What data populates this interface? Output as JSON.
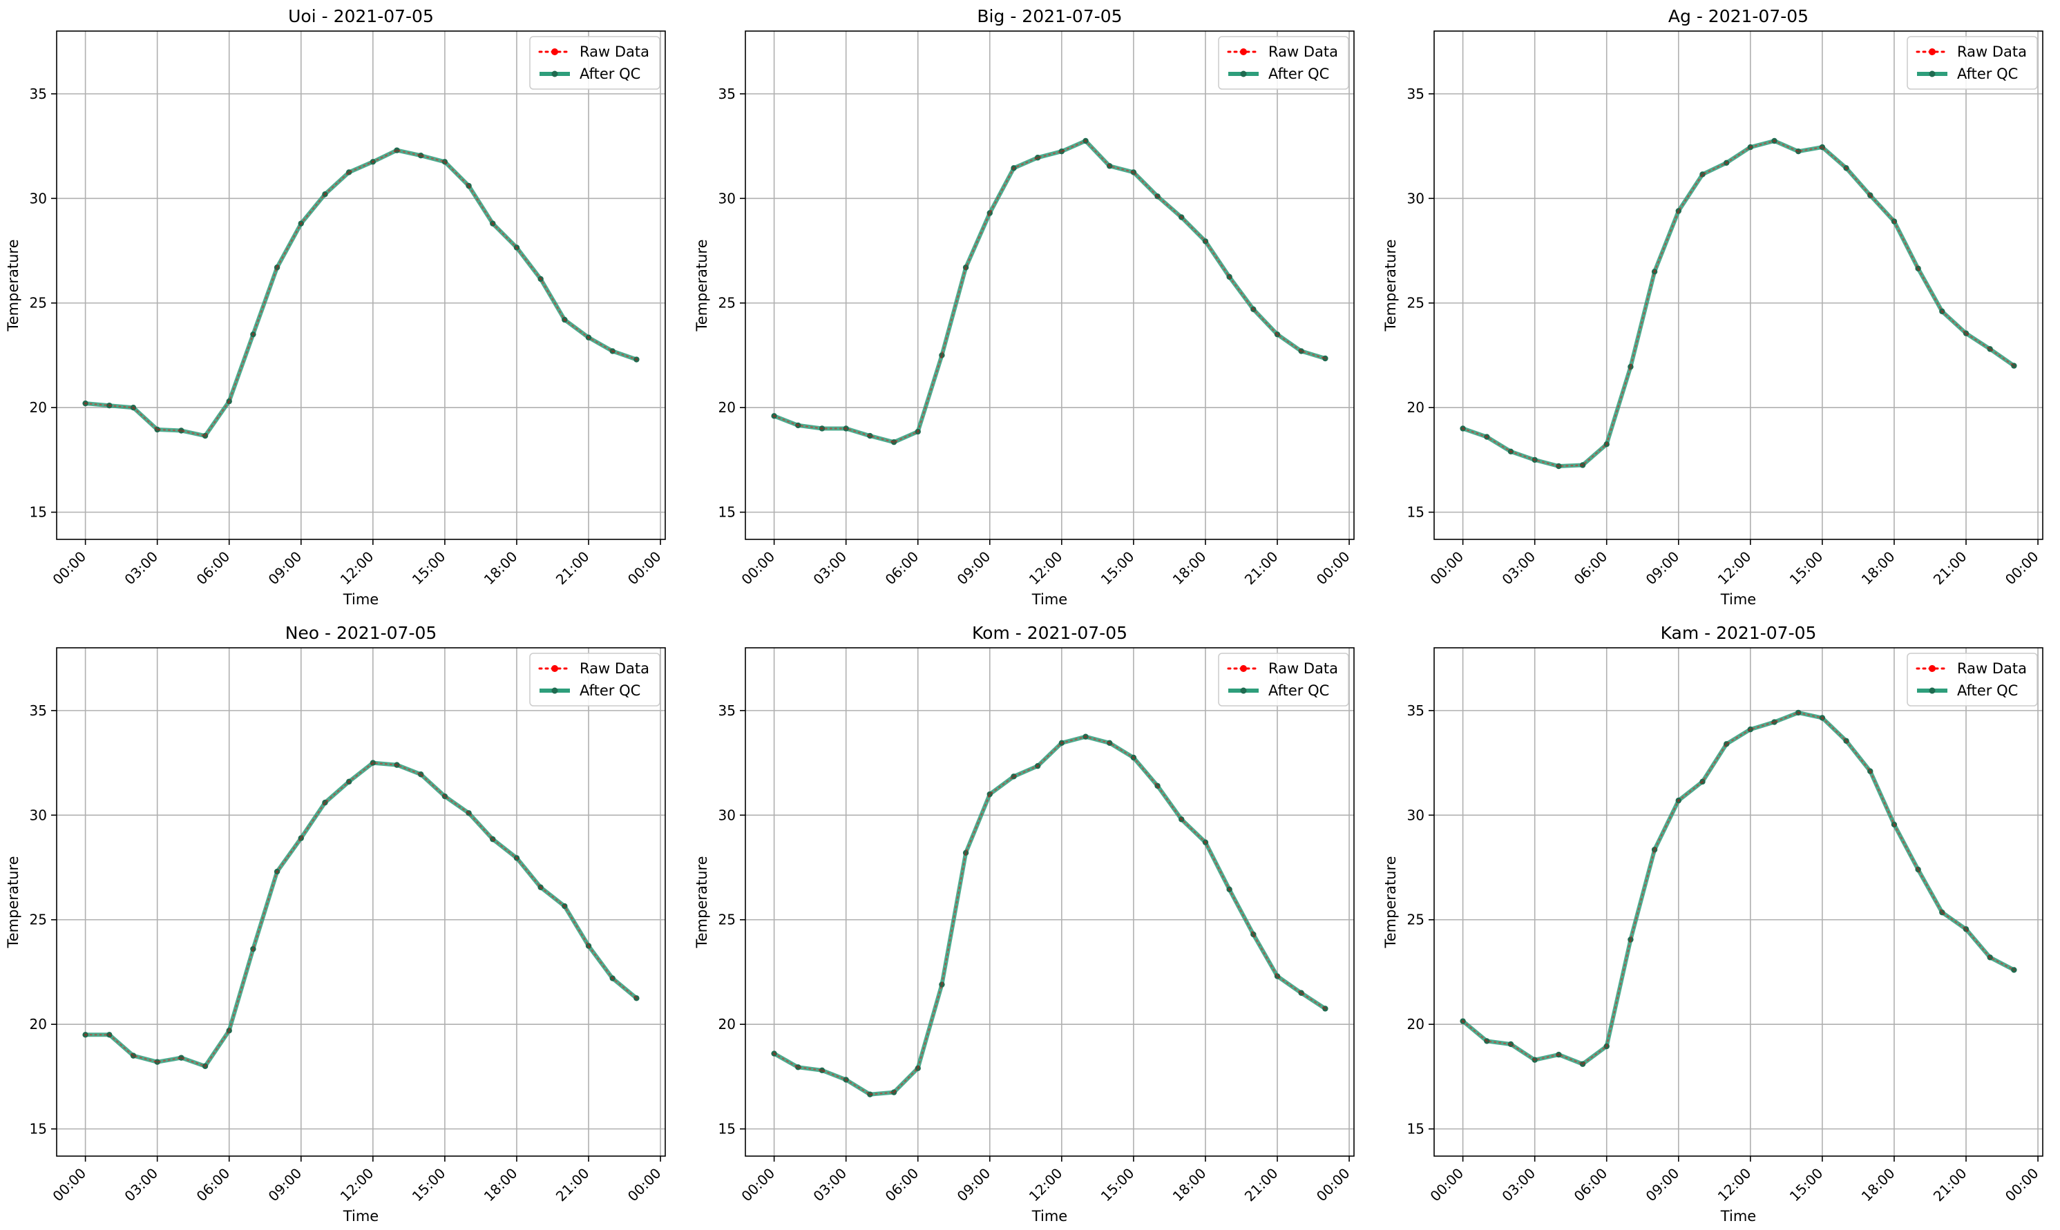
{
  "colors": {
    "raw": "#ff0000",
    "qc": "#2e9e7b",
    "qc_marker": "#1f6b50",
    "grid": "#b0b0b0",
    "axes": "#000000"
  },
  "legend": {
    "placement": "top-right",
    "raw_label": "Raw Data",
    "qc_label": "After QC"
  },
  "chart_data": [
    {
      "type": "line",
      "title": "Uoi - 2021-07-05",
      "xlabel": "Time",
      "ylabel": "Temperature",
      "x": [
        "00:00",
        "01:00",
        "02:00",
        "03:00",
        "04:00",
        "05:00",
        "06:00",
        "07:00",
        "08:00",
        "09:00",
        "10:00",
        "11:00",
        "12:00",
        "13:00",
        "14:00",
        "15:00",
        "16:00",
        "17:00",
        "18:00",
        "19:00",
        "20:00",
        "21:00",
        "22:00",
        "23:00"
      ],
      "xticks": [
        "00:00",
        "03:00",
        "06:00",
        "09:00",
        "12:00",
        "15:00",
        "18:00",
        "21:00",
        "00:00"
      ],
      "yticks": [
        15,
        20,
        25,
        30,
        35
      ],
      "ylim": [
        13.7,
        38
      ],
      "xlim_hours": [
        -1.2,
        24.2
      ],
      "grid": true,
      "series": [
        {
          "name": "Raw Data",
          "values": [
            20.2,
            20.1,
            20.0,
            18.95,
            18.9,
            18.65,
            20.3,
            23.5,
            26.7,
            28.8,
            30.2,
            31.25,
            31.75,
            32.3,
            32.05,
            31.75,
            30.6,
            28.8,
            27.65,
            26.15,
            24.2,
            23.35,
            22.7,
            22.3
          ]
        },
        {
          "name": "After QC",
          "values": [
            20.2,
            20.1,
            20.0,
            18.95,
            18.9,
            18.65,
            20.3,
            23.5,
            26.7,
            28.8,
            30.2,
            31.25,
            31.75,
            32.3,
            32.05,
            31.75,
            30.6,
            28.8,
            27.65,
            26.15,
            24.2,
            23.35,
            22.7,
            22.3
          ]
        }
      ]
    },
    {
      "type": "line",
      "title": "Big - 2021-07-05",
      "xlabel": "Time",
      "ylabel": "Temperature",
      "x": [
        "00:00",
        "01:00",
        "02:00",
        "03:00",
        "04:00",
        "05:00",
        "06:00",
        "07:00",
        "08:00",
        "09:00",
        "10:00",
        "11:00",
        "12:00",
        "13:00",
        "14:00",
        "15:00",
        "16:00",
        "17:00",
        "18:00",
        "19:00",
        "20:00",
        "21:00",
        "22:00",
        "23:00"
      ],
      "xticks": [
        "00:00",
        "03:00",
        "06:00",
        "09:00",
        "12:00",
        "15:00",
        "18:00",
        "21:00",
        "00:00"
      ],
      "yticks": [
        15,
        20,
        25,
        30,
        35
      ],
      "ylim": [
        13.7,
        38
      ],
      "xlim_hours": [
        -1.2,
        24.2
      ],
      "grid": true,
      "series": [
        {
          "name": "Raw Data",
          "values": [
            19.6,
            19.15,
            19.0,
            19.0,
            18.65,
            18.35,
            18.85,
            22.5,
            26.7,
            29.3,
            31.45,
            31.95,
            32.25,
            32.75,
            31.55,
            31.25,
            30.1,
            29.1,
            27.95,
            26.25,
            24.7,
            23.5,
            22.7,
            22.35
          ]
        },
        {
          "name": "After QC",
          "values": [
            19.6,
            19.15,
            19.0,
            19.0,
            18.65,
            18.35,
            18.85,
            22.5,
            26.7,
            29.3,
            31.45,
            31.95,
            32.25,
            32.75,
            31.55,
            31.25,
            30.1,
            29.1,
            27.95,
            26.25,
            24.7,
            23.5,
            22.7,
            22.35
          ]
        }
      ]
    },
    {
      "type": "line",
      "title": "Ag - 2021-07-05",
      "xlabel": "Time",
      "ylabel": "Temperature",
      "x": [
        "00:00",
        "01:00",
        "02:00",
        "03:00",
        "04:00",
        "05:00",
        "06:00",
        "07:00",
        "08:00",
        "09:00",
        "10:00",
        "11:00",
        "12:00",
        "13:00",
        "14:00",
        "15:00",
        "16:00",
        "17:00",
        "18:00",
        "19:00",
        "20:00",
        "21:00",
        "22:00",
        "23:00"
      ],
      "xticks": [
        "00:00",
        "03:00",
        "06:00",
        "09:00",
        "12:00",
        "15:00",
        "18:00",
        "21:00",
        "00:00"
      ],
      "yticks": [
        15,
        20,
        25,
        30,
        35
      ],
      "ylim": [
        13.7,
        38
      ],
      "xlim_hours": [
        -1.2,
        24.2
      ],
      "grid": true,
      "series": [
        {
          "name": "Raw Data",
          "values": [
            19.0,
            18.6,
            17.9,
            17.5,
            17.2,
            17.25,
            18.25,
            21.95,
            26.5,
            29.4,
            31.15,
            31.7,
            32.45,
            32.75,
            32.25,
            32.45,
            31.45,
            30.15,
            28.9,
            26.65,
            24.6,
            23.55,
            22.8,
            22.0
          ]
        },
        {
          "name": "After QC",
          "values": [
            19.0,
            18.6,
            17.9,
            17.5,
            17.2,
            17.25,
            18.25,
            21.95,
            26.5,
            29.4,
            31.15,
            31.7,
            32.45,
            32.75,
            32.25,
            32.45,
            31.45,
            30.15,
            28.9,
            26.65,
            24.6,
            23.55,
            22.8,
            22.0
          ]
        }
      ]
    },
    {
      "type": "line",
      "title": "Neo - 2021-07-05",
      "xlabel": "Time",
      "ylabel": "Temperature",
      "x": [
        "00:00",
        "01:00",
        "02:00",
        "03:00",
        "04:00",
        "05:00",
        "06:00",
        "07:00",
        "08:00",
        "09:00",
        "10:00",
        "11:00",
        "12:00",
        "13:00",
        "14:00",
        "15:00",
        "16:00",
        "17:00",
        "18:00",
        "19:00",
        "20:00",
        "21:00",
        "22:00",
        "23:00"
      ],
      "xticks": [
        "00:00",
        "03:00",
        "06:00",
        "09:00",
        "12:00",
        "15:00",
        "18:00",
        "21:00",
        "00:00"
      ],
      "yticks": [
        15,
        20,
        25,
        30,
        35
      ],
      "ylim": [
        13.7,
        38
      ],
      "xlim_hours": [
        -1.2,
        24.2
      ],
      "grid": true,
      "series": [
        {
          "name": "Raw Data",
          "values": [
            19.5,
            19.5,
            18.5,
            18.2,
            18.4,
            18.0,
            19.7,
            23.6,
            27.3,
            28.9,
            30.6,
            31.6,
            32.5,
            32.4,
            31.95,
            30.9,
            30.1,
            28.85,
            27.95,
            26.55,
            25.65,
            23.75,
            22.2,
            21.25
          ]
        },
        {
          "name": "After QC",
          "values": [
            19.5,
            19.5,
            18.5,
            18.2,
            18.4,
            18.0,
            19.7,
            23.6,
            27.3,
            28.9,
            30.6,
            31.6,
            32.5,
            32.4,
            31.95,
            30.9,
            30.1,
            28.85,
            27.95,
            26.55,
            25.65,
            23.75,
            22.2,
            21.25
          ]
        }
      ]
    },
    {
      "type": "line",
      "title": "Kom - 2021-07-05",
      "xlabel": "Time",
      "ylabel": "Temperature",
      "x": [
        "00:00",
        "01:00",
        "02:00",
        "03:00",
        "04:00",
        "05:00",
        "06:00",
        "07:00",
        "08:00",
        "09:00",
        "10:00",
        "11:00",
        "12:00",
        "13:00",
        "14:00",
        "15:00",
        "16:00",
        "17:00",
        "18:00",
        "19:00",
        "20:00",
        "21:00",
        "22:00",
        "23:00"
      ],
      "xticks": [
        "00:00",
        "03:00",
        "06:00",
        "09:00",
        "12:00",
        "15:00",
        "18:00",
        "21:00",
        "00:00"
      ],
      "yticks": [
        15,
        20,
        25,
        30,
        35
      ],
      "ylim": [
        13.7,
        38
      ],
      "xlim_hours": [
        -1.2,
        24.2
      ],
      "grid": true,
      "series": [
        {
          "name": "Raw Data",
          "values": [
            18.6,
            17.95,
            17.8,
            17.35,
            16.65,
            16.75,
            17.9,
            21.9,
            28.2,
            31.0,
            31.85,
            32.35,
            33.45,
            33.75,
            33.45,
            32.75,
            31.4,
            29.8,
            28.7,
            26.45,
            24.3,
            22.3,
            21.5,
            20.75
          ]
        },
        {
          "name": "After QC",
          "values": [
            18.6,
            17.95,
            17.8,
            17.35,
            16.65,
            16.75,
            17.9,
            21.9,
            28.2,
            31.0,
            31.85,
            32.35,
            33.45,
            33.75,
            33.45,
            32.75,
            31.4,
            29.8,
            28.7,
            26.45,
            24.3,
            22.3,
            21.5,
            20.75
          ]
        }
      ]
    },
    {
      "type": "line",
      "title": "Kam - 2021-07-05",
      "xlabel": "Time",
      "ylabel": "Temperature",
      "x": [
        "00:00",
        "01:00",
        "02:00",
        "03:00",
        "04:00",
        "05:00",
        "06:00",
        "07:00",
        "08:00",
        "09:00",
        "10:00",
        "11:00",
        "12:00",
        "13:00",
        "14:00",
        "15:00",
        "16:00",
        "17:00",
        "18:00",
        "19:00",
        "20:00",
        "21:00",
        "22:00",
        "23:00"
      ],
      "xticks": [
        "00:00",
        "03:00",
        "06:00",
        "09:00",
        "12:00",
        "15:00",
        "18:00",
        "21:00",
        "00:00"
      ],
      "yticks": [
        15,
        20,
        25,
        30,
        35
      ],
      "ylim": [
        13.7,
        38
      ],
      "xlim_hours": [
        -1.2,
        24.2
      ],
      "grid": true,
      "series": [
        {
          "name": "Raw Data",
          "values": [
            20.15,
            19.2,
            19.05,
            18.3,
            18.55,
            18.1,
            18.95,
            24.05,
            28.35,
            30.7,
            31.6,
            33.4,
            34.1,
            34.45,
            34.9,
            34.65,
            33.55,
            32.1,
            29.55,
            27.4,
            25.35,
            24.55,
            23.2,
            22.6
          ]
        },
        {
          "name": "After QC",
          "values": [
            20.15,
            19.2,
            19.05,
            18.3,
            18.55,
            18.1,
            18.95,
            24.05,
            28.35,
            30.7,
            31.6,
            33.4,
            34.1,
            34.45,
            34.9,
            34.65,
            33.55,
            32.1,
            29.55,
            27.4,
            25.35,
            24.55,
            23.2,
            22.6
          ]
        }
      ]
    }
  ]
}
